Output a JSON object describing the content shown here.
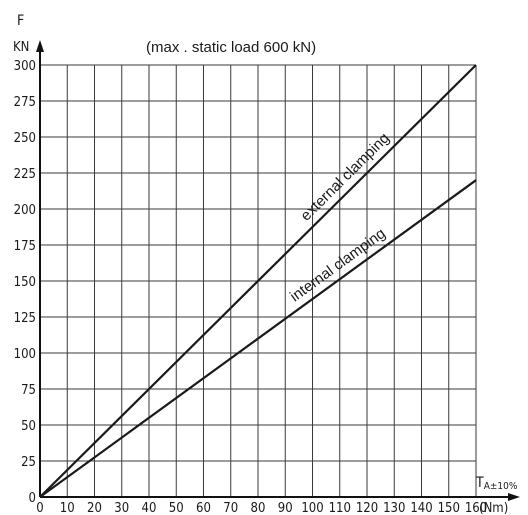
{
  "chart_data": {
    "type": "line",
    "title": "(max . static load 600 kN)",
    "ylabel": "F",
    "yunit": "KN",
    "xlabel_main": "T",
    "xlabel_sub": "A±10%",
    "xunit": "(Nm)",
    "xlim": [
      0,
      160
    ],
    "ylim": [
      0,
      300
    ],
    "x_ticks": [
      0,
      10,
      20,
      30,
      40,
      50,
      60,
      70,
      80,
      90,
      100,
      110,
      120,
      130,
      140,
      150,
      160
    ],
    "y_ticks": [
      0,
      25,
      50,
      75,
      100,
      125,
      150,
      175,
      200,
      225,
      250,
      275,
      300
    ],
    "grid": true,
    "series": [
      {
        "name": "external clamping",
        "x": [
          0,
          160
        ],
        "y": [
          0,
          300
        ]
      },
      {
        "name": "internal clamping",
        "x": [
          0,
          160
        ],
        "y": [
          0,
          220
        ]
      }
    ]
  }
}
